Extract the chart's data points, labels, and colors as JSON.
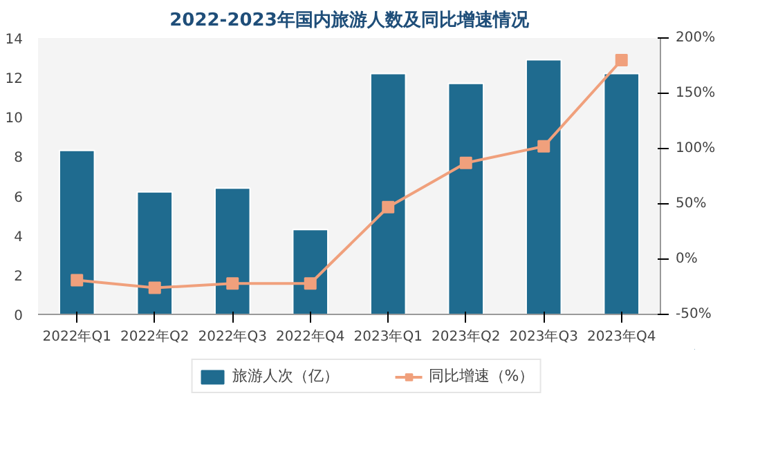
{
  "chart_data": {
    "type": "bar",
    "title": "2022-2023年国内旅游人数及同比增速情况",
    "categories": [
      "2022年Q1",
      "2022年Q2",
      "2022年Q3",
      "2022年Q4",
      "2023年Q1",
      "2023年Q2",
      "2023年Q3",
      "2023年Q4"
    ],
    "series": [
      {
        "name": "旅游人次（亿）",
        "color": "#1f6b8f",
        "values": [
          8.3,
          6.2,
          6.4,
          4.3,
          12.2,
          11.7,
          12.9,
          12.2
        ]
      },
      {
        "name": "同比增速（%）",
        "type": "line",
        "axis": "y2",
        "color": "#f0a07c",
        "marker": "square",
        "values": [
          -19,
          -26,
          -22,
          -22,
          47,
          87,
          102,
          180
        ]
      }
    ],
    "ylim": [
      0,
      14
    ],
    "yticks": [
      0,
      2,
      4,
      6,
      8,
      10,
      12,
      14
    ],
    "y2lim": [
      -50,
      200
    ],
    "y2ticks": [
      {
        "value": -50,
        "label": "-50%"
      },
      {
        "value": 0,
        "label": "0%"
      },
      {
        "value": 50,
        "label": "50%"
      },
      {
        "value": 100,
        "label": "100%"
      },
      {
        "value": 150,
        "label": "150%"
      },
      {
        "value": 200,
        "label": "200%"
      }
    ],
    "grid": false,
    "legend": "bottom"
  }
}
